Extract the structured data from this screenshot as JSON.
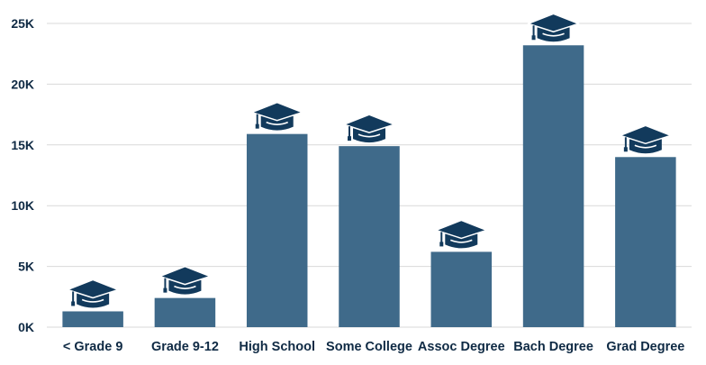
{
  "chart_data": {
    "type": "bar",
    "categories": [
      "< Grade 9",
      "Grade 9-12",
      "High School",
      "Some College",
      "Assoc Degree",
      "Bach Degree",
      "Grad Degree"
    ],
    "values": [
      1300,
      2400,
      15900,
      14900,
      6200,
      23200,
      14000
    ],
    "ylim": [
      0,
      25000
    ],
    "yticks": [
      0,
      5000,
      10000,
      15000,
      20000,
      25000
    ],
    "ytick_labels": [
      "0K",
      "5K",
      "10K",
      "15K",
      "20K",
      "25K"
    ],
    "grid": true,
    "bar_color": "#3f6a8a",
    "icon_color": "#123a5c",
    "marker_icon": "graduation-cap-icon"
  }
}
